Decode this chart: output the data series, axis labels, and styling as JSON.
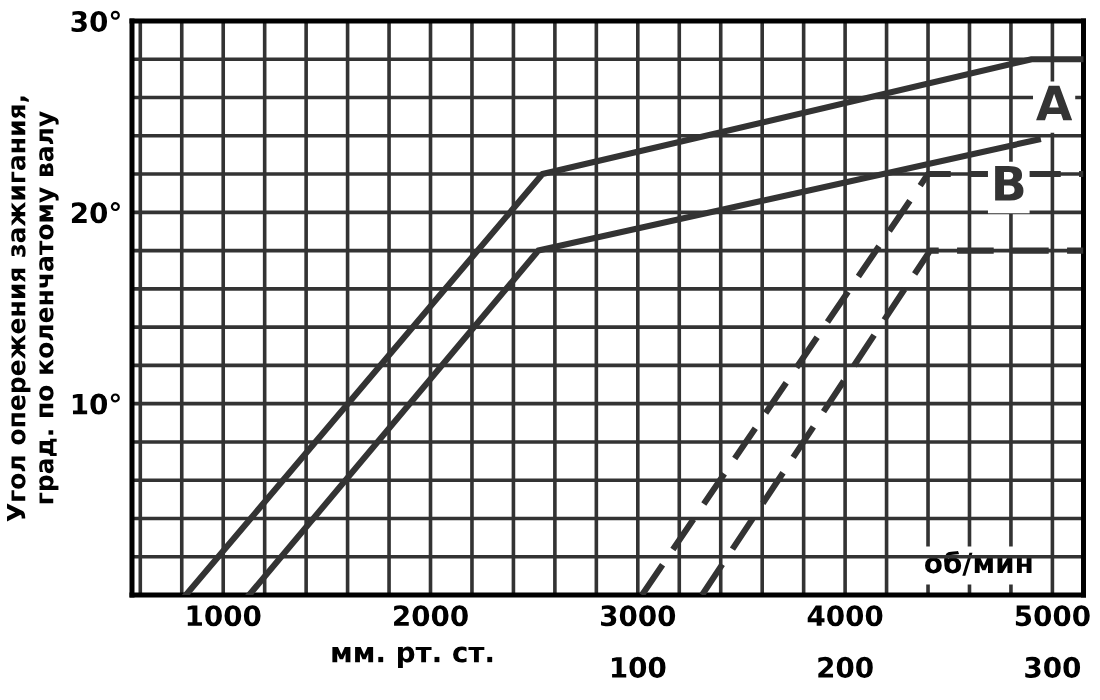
{
  "chart_data": {
    "type": "line",
    "ylabel": "Угол опережения зажигания,\nград. по коленчатому валу",
    "xlabel": "об/мин",
    "x2label": "мм. рт. ст.",
    "series": [
      {
        "name": "A",
        "color": "#333333",
        "line_style": "solid",
        "x": [
          820,
          2540,
          4900,
          5150
        ],
        "values": [
          0,
          22,
          28,
          28
        ]
      },
      {
        "name": "B",
        "color": "#333333",
        "line_style": "solid",
        "x": [
          1125,
          2520,
          4930
        ],
        "values": [
          0,
          18,
          23.8
        ]
      },
      {
        "color": "#333333",
        "line_style": "dashed",
        "x": [
          3020,
          4400,
          5150
        ],
        "values": [
          0,
          22,
          22
        ]
      },
      {
        "color": "#333333",
        "line_style": "dashed",
        "x": [
          3310,
          4410,
          5150
        ],
        "values": [
          0,
          18,
          18
        ]
      }
    ],
    "xlim": [
      560,
      5150
    ],
    "xticks": [
      {
        "value": 600,
        "label": null
      },
      {
        "value": 800,
        "label": null
      },
      1000,
      {
        "value": 1200,
        "label": null
      },
      {
        "value": 1400,
        "label": null
      },
      {
        "value": 1600,
        "label": null
      },
      {
        "value": 1800,
        "label": null
      },
      2000,
      {
        "value": 2200,
        "label": null
      },
      {
        "value": 2400,
        "label": null
      },
      {
        "value": 2600,
        "label": null
      },
      {
        "value": 2800,
        "label": null
      },
      3000,
      {
        "value": 3200,
        "label": null
      },
      {
        "value": 3400,
        "label": null
      },
      {
        "value": 3600,
        "label": null
      },
      {
        "value": 3800,
        "label": null
      },
      4000,
      {
        "value": 4200,
        "label": null
      },
      {
        "value": 4400,
        "label": null
      },
      {
        "value": 4600,
        "label": null
      },
      {
        "value": 4800,
        "label": null
      },
      5000
    ],
    "x2lim": [
      -144,
      315
    ],
    "x2ticks": [
      100,
      200,
      300
    ],
    "ylim": [
      0,
      30
    ],
    "yticks": [
      {
        "value": 0,
        "label": null
      },
      {
        "value": 2,
        "label": null
      },
      {
        "value": 4,
        "label": null
      },
      {
        "value": 6,
        "label": null
      },
      {
        "value": 8,
        "label": null
      },
      {
        "value": 10,
        "label": "10°"
      },
      {
        "value": 12,
        "label": null
      },
      {
        "value": 14,
        "label": null
      },
      {
        "value": 16,
        "label": null
      },
      {
        "value": 18,
        "label": null
      },
      {
        "value": 20,
        "label": "20°"
      },
      {
        "value": 22,
        "label": null
      },
      {
        "value": 24,
        "label": null
      },
      {
        "value": 26,
        "label": null
      },
      {
        "value": 28,
        "label": null
      },
      {
        "value": 30,
        "label": "30°"
      }
    ],
    "grid": true,
    "marker": "none"
  }
}
